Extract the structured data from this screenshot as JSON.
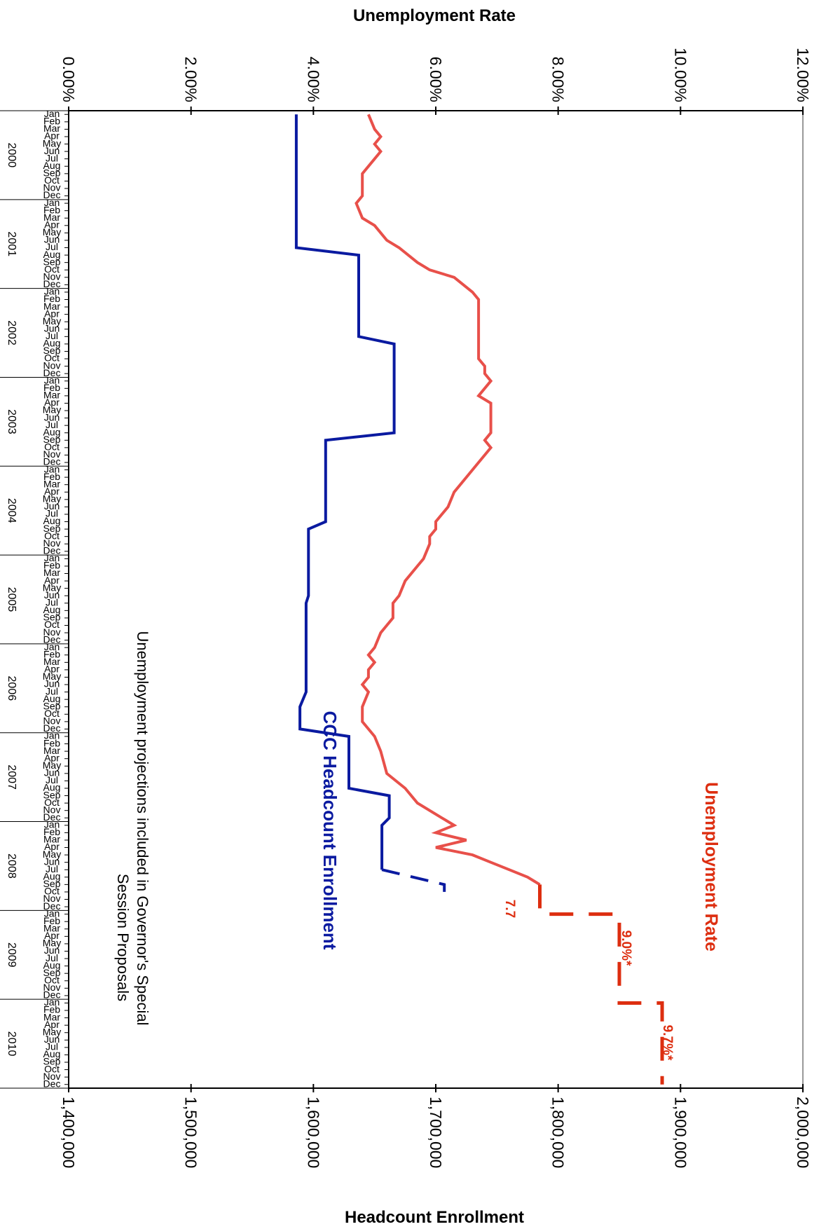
{
  "chart_data": {
    "type": "line",
    "orientation": "rotated-90-clockwise",
    "top_axis_label": "Unemployment Rate",
    "bottom_axis_label": "Headcount Enrollment",
    "top_axis_ticks": [
      "0.00%",
      "2.00%",
      "4.00%",
      "6.00%",
      "8.00%",
      "10.00%",
      "12.00%"
    ],
    "top_axis_range": [
      0,
      12
    ],
    "bottom_axis_ticks": [
      "1,400,000",
      "1,500,000",
      "1,600,000",
      "1,700,000",
      "1,800,000",
      "1,900,000",
      "2,000,000"
    ],
    "bottom_axis_range": [
      1400000,
      2000000
    ],
    "time_range": [
      "2000-01",
      "2010-12"
    ],
    "years": [
      "2000",
      "2001",
      "2002",
      "2003",
      "2004",
      "2005",
      "2006",
      "2007",
      "2008",
      "2009",
      "2010"
    ],
    "months": [
      "Jan",
      "Feb",
      "Mar",
      "Apr",
      "May",
      "Jun",
      "Jul",
      "Aug",
      "Sep",
      "Oct",
      "Nov",
      "Dec"
    ],
    "legend": {
      "unemployment": "Unemployment Rate",
      "enrollment": "CCC Headcount Enrollment"
    },
    "note": {
      "line1": "Unemployment projections included in Governor's Special",
      "line2": "Session Proposals"
    },
    "annotations": {
      "proj1": "7.7",
      "proj2": "9.0%*",
      "proj3": "9.7%*"
    },
    "colors": {
      "unemployment": "#e8504a",
      "unemployment_projection": "#dd2e10",
      "enrollment": "#0a1aa0",
      "axis": "#000000",
      "right_border": "#999999"
    },
    "series": [
      {
        "name": "Unemployment Rate",
        "unit": "percent",
        "points": [
          [
            "2000-01",
            4.9
          ],
          [
            "2000-03",
            5.0
          ],
          [
            "2000-04",
            5.1
          ],
          [
            "2000-05",
            5.0
          ],
          [
            "2000-06",
            5.1
          ],
          [
            "2000-07",
            5.0
          ],
          [
            "2000-09",
            4.8
          ],
          [
            "2000-12",
            4.8
          ],
          [
            "2001-01",
            4.7
          ],
          [
            "2001-03",
            4.8
          ],
          [
            "2001-04",
            5.0
          ],
          [
            "2001-06",
            5.2
          ],
          [
            "2001-07",
            5.4
          ],
          [
            "2001-09",
            5.7
          ],
          [
            "2001-10",
            5.9
          ],
          [
            "2001-11",
            6.3
          ],
          [
            "2002-01",
            6.6
          ],
          [
            "2002-02",
            6.7
          ],
          [
            "2002-08",
            6.7
          ],
          [
            "2002-10",
            6.7
          ],
          [
            "2002-11",
            6.8
          ],
          [
            "2002-12",
            6.8
          ],
          [
            "2003-01",
            6.9
          ],
          [
            "2003-03",
            6.7
          ],
          [
            "2003-04",
            6.9
          ],
          [
            "2003-08",
            6.9
          ],
          [
            "2003-09",
            6.8
          ],
          [
            "2003-10",
            6.9
          ],
          [
            "2003-12",
            6.7
          ],
          [
            "2004-02",
            6.5
          ],
          [
            "2004-04",
            6.3
          ],
          [
            "2004-06",
            6.2
          ],
          [
            "2004-07",
            6.1
          ],
          [
            "2004-08",
            6.0
          ],
          [
            "2004-09",
            6.0
          ],
          [
            "2004-10",
            5.9
          ],
          [
            "2004-11",
            5.9
          ],
          [
            "2005-01",
            5.8
          ],
          [
            "2005-02",
            5.7
          ],
          [
            "2005-04",
            5.5
          ],
          [
            "2005-06",
            5.4
          ],
          [
            "2005-07",
            5.3
          ],
          [
            "2005-09",
            5.3
          ],
          [
            "2005-10",
            5.2
          ],
          [
            "2005-11",
            5.1
          ],
          [
            "2006-01",
            5.0
          ],
          [
            "2006-02",
            4.9
          ],
          [
            "2006-03",
            5.0
          ],
          [
            "2006-04",
            4.9
          ],
          [
            "2006-05",
            4.9
          ],
          [
            "2006-06",
            4.8
          ],
          [
            "2006-07",
            4.9
          ],
          [
            "2006-09",
            4.8
          ],
          [
            "2006-11",
            4.8
          ],
          [
            "2006-12",
            4.9
          ],
          [
            "2007-01",
            5.0
          ],
          [
            "2007-03",
            5.1
          ],
          [
            "2007-06",
            5.2
          ],
          [
            "2007-08",
            5.5
          ],
          [
            "2007-10",
            5.7
          ],
          [
            "2007-12",
            6.1
          ],
          [
            "2008-01",
            6.3
          ],
          [
            "2008-02",
            6.0
          ],
          [
            "2008-03",
            6.5
          ],
          [
            "2008-04",
            6.0
          ],
          [
            "2008-05",
            6.6
          ],
          [
            "2008-06",
            6.9
          ],
          [
            "2008-07",
            7.2
          ],
          [
            "2008-08",
            7.5
          ],
          [
            "2008-09",
            7.7
          ]
        ]
      },
      {
        "name": "Unemployment Rate (projection)",
        "unit": "percent",
        "dashed": true,
        "points": [
          [
            "2008-09",
            7.7
          ],
          [
            "2009-01",
            7.7
          ],
          [
            "2009-01",
            9.0
          ],
          [
            "2009-10",
            9.0
          ],
          [
            "2010-01",
            9.0
          ],
          [
            "2010-01",
            9.7
          ],
          [
            "2010-12",
            9.7
          ]
        ]
      },
      {
        "name": "CCC Headcount Enrollment",
        "unit": "students",
        "points": [
          [
            "2000-01",
            1586000
          ],
          [
            "2001-07",
            1586000
          ],
          [
            "2001-08",
            1637000
          ],
          [
            "2002-07",
            1637000
          ],
          [
            "2002-08",
            1666000
          ],
          [
            "2003-08",
            1666000
          ],
          [
            "2003-09",
            1610000
          ],
          [
            "2004-08",
            1610000
          ],
          [
            "2004-09",
            1596000
          ],
          [
            "2005-06",
            1596000
          ],
          [
            "2005-07",
            1594000
          ],
          [
            "2006-07",
            1594000
          ],
          [
            "2006-09",
            1589000
          ],
          [
            "2006-12",
            1589000
          ],
          [
            "2007-01",
            1629000
          ],
          [
            "2007-08",
            1629000
          ],
          [
            "2007-09",
            1662000
          ],
          [
            "2007-12",
            1662000
          ],
          [
            "2008-01",
            1656000
          ],
          [
            "2008-07",
            1656000
          ]
        ]
      },
      {
        "name": "CCC Headcount Enrollment (projection)",
        "unit": "students",
        "dashed": true,
        "points": [
          [
            "2008-07",
            1656000
          ],
          [
            "2008-09",
            1707000
          ],
          [
            "2008-10",
            1707000
          ]
        ]
      }
    ]
  }
}
